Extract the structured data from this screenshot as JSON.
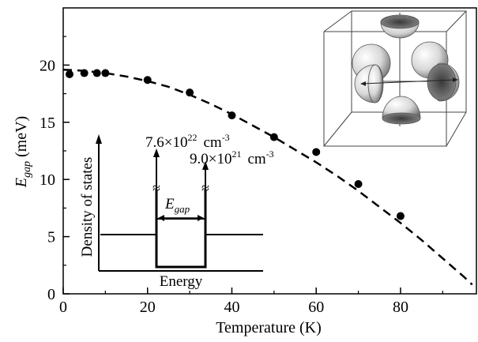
{
  "chart_data": {
    "type": "scatter",
    "xlabel": "Temperature (K)",
    "ylabel_main": "E",
    "ylabel_sub": "gap",
    "ylabel_unit": " (meV)",
    "xlim": [
      0,
      98
    ],
    "ylim": [
      0,
      25
    ],
    "xticks": [
      0,
      20,
      40,
      60,
      80
    ],
    "yticks": [
      0,
      5,
      10,
      15,
      20
    ],
    "grid": false,
    "legend": "none",
    "series": [
      {
        "kind": "points",
        "marker": "filled-circle",
        "color": "#000000",
        "x": [
          1.5,
          5,
          8,
          10,
          20,
          30,
          40,
          50,
          60,
          70,
          80
        ],
        "y": [
          19.2,
          19.3,
          19.3,
          19.3,
          18.7,
          17.6,
          15.6,
          13.7,
          12.4,
          9.6,
          6.8
        ]
      },
      {
        "kind": "fit-curve",
        "style": "dashed",
        "color": "#000000",
        "x": [
          0,
          5,
          10,
          15,
          20,
          25,
          30,
          35,
          40,
          45,
          50,
          55,
          60,
          65,
          70,
          75,
          80,
          85,
          90,
          95,
          97
        ],
        "y": [
          19.6,
          19.5,
          19.3,
          19.0,
          18.6,
          18.1,
          17.4,
          16.6,
          15.7,
          14.7,
          13.7,
          12.6,
          11.5,
          10.3,
          9.0,
          7.6,
          6.2,
          4.7,
          3.1,
          1.5,
          0.8
        ]
      }
    ],
    "inset_dos": {
      "ylabel": "Density of states",
      "xlabel": "Energy",
      "gap_label_main": "E",
      "gap_label_sub": "gap",
      "left_peak_label": "7.6×10",
      "left_peak_exp": "22",
      "left_peak_unit": "cm",
      "left_peak_unit_exp": "-3",
      "right_peak_label": "9.0×10",
      "right_peak_exp": "21",
      "right_peak_unit": "cm",
      "right_peak_unit_exp": "-3",
      "break_symbol": "≈"
    },
    "inset_3d": {
      "description_icon": "fermi-surface-hemispheres-in-cube"
    }
  }
}
